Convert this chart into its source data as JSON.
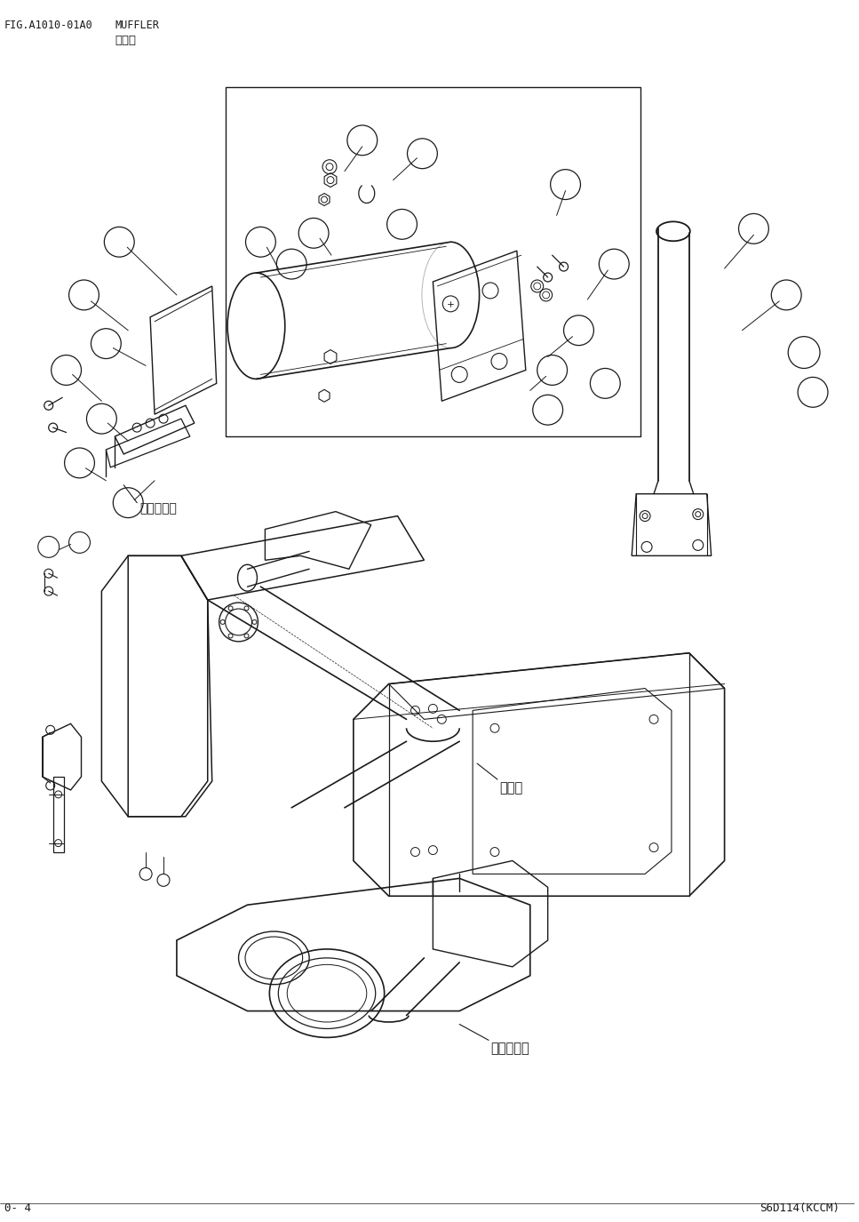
{
  "bg_color": "#ffffff",
  "line_color": "#1a1a1a",
  "fig_width": 9.67,
  "fig_height": 13.75,
  "dpi": 100,
  "header_left": "FIG.A1010-01A0",
  "header_right": "MUFFLER",
  "header_chinese": "消音器",
  "footer_left": "0- 4",
  "footer_right": "S6D114(KCCM)",
  "label_engine_belt": "发动机轴带",
  "label_engine": "发动机",
  "label_turbo": "浡轮增压器"
}
